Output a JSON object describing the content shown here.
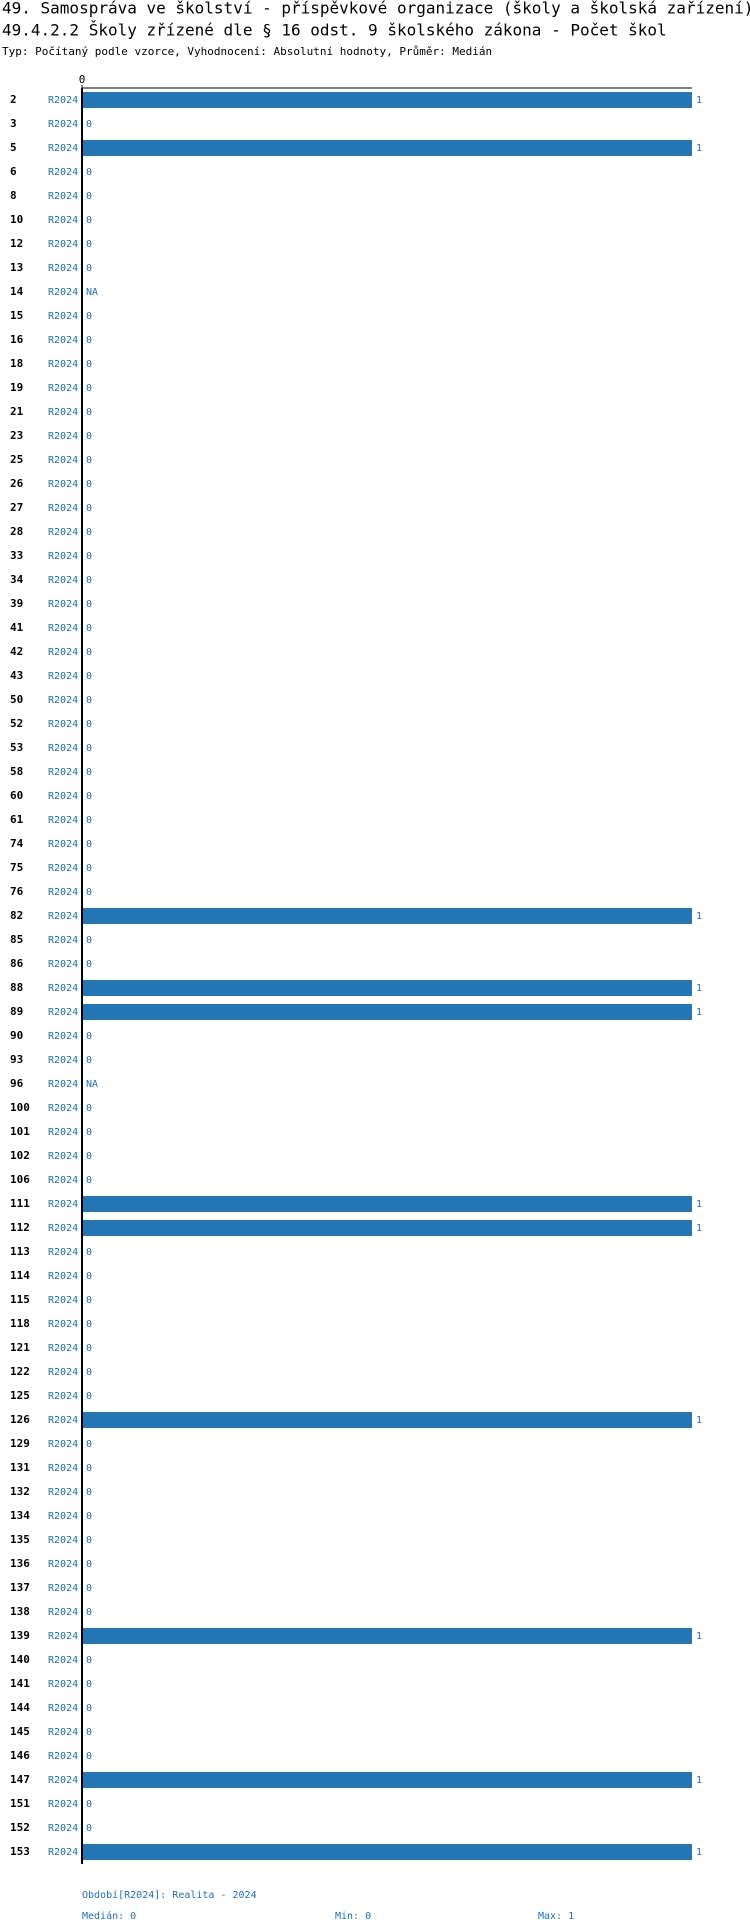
{
  "chart_data": {
    "type": "bar",
    "orientation": "horizontal",
    "title": "49. Samospráva ve školství - příspěvkové organizace (školy a školská zařízení)",
    "subtitle": "49.4.2.2 Školy zřízené dle § 16 odst. 9 školského zákona - Počet škol",
    "description": "Typ: Počítaný podle vzorce, Vyhodnocení: Absolutní hodnoty, Průměr: Medián",
    "categories": [
      "2",
      "3",
      "5",
      "6",
      "8",
      "10",
      "12",
      "13",
      "14",
      "15",
      "16",
      "18",
      "19",
      "21",
      "23",
      "25",
      "26",
      "27",
      "28",
      "33",
      "34",
      "39",
      "41",
      "42",
      "43",
      "50",
      "52",
      "53",
      "58",
      "60",
      "61",
      "74",
      "75",
      "76",
      "82",
      "85",
      "86",
      "88",
      "89",
      "90",
      "93",
      "96",
      "100",
      "101",
      "102",
      "106",
      "111",
      "112",
      "113",
      "114",
      "115",
      "118",
      "121",
      "122",
      "125",
      "126",
      "129",
      "131",
      "132",
      "134",
      "135",
      "136",
      "137",
      "138",
      "139",
      "140",
      "141",
      "144",
      "145",
      "146",
      "147",
      "151",
      "152",
      "153"
    ],
    "series": [
      {
        "name": "R2024",
        "color": "#2476b5",
        "values": [
          1,
          0,
          1,
          0,
          0,
          0,
          0,
          0,
          null,
          0,
          0,
          0,
          0,
          0,
          0,
          0,
          0,
          0,
          0,
          0,
          0,
          0,
          0,
          0,
          0,
          0,
          0,
          0,
          0,
          0,
          0,
          0,
          0,
          0,
          1,
          0,
          0,
          1,
          1,
          0,
          0,
          null,
          0,
          0,
          0,
          0,
          1,
          1,
          0,
          0,
          0,
          0,
          0,
          0,
          0,
          1,
          0,
          0,
          0,
          0,
          0,
          0,
          0,
          0,
          1,
          0,
          0,
          0,
          0,
          0,
          1,
          0,
          0,
          1
        ],
        "value_labels": [
          "1",
          "0",
          "1",
          "0",
          "0",
          "0",
          "0",
          "0",
          "NA",
          "0",
          "0",
          "0",
          "0",
          "0",
          "0",
          "0",
          "0",
          "0",
          "0",
          "0",
          "0",
          "0",
          "0",
          "0",
          "0",
          "0",
          "0",
          "0",
          "0",
          "0",
          "0",
          "0",
          "0",
          "0",
          "1",
          "0",
          "0",
          "1",
          "1",
          "0",
          "0",
          "NA",
          "0",
          "0",
          "0",
          "0",
          "1",
          "1",
          "0",
          "0",
          "0",
          "0",
          "0",
          "0",
          "0",
          "1",
          "0",
          "0",
          "0",
          "0",
          "0",
          "0",
          "0",
          "0",
          "1",
          "0",
          "0",
          "0",
          "0",
          "0",
          "1",
          "0",
          "0",
          "1"
        ]
      }
    ],
    "xlim": [
      0,
      1
    ],
    "xticks": [
      0
    ],
    "footer": {
      "period": "Období[R2024]: Realita - 2024",
      "median": "Medián: 0",
      "min": "Min: 0",
      "max": "Max: 1"
    }
  }
}
